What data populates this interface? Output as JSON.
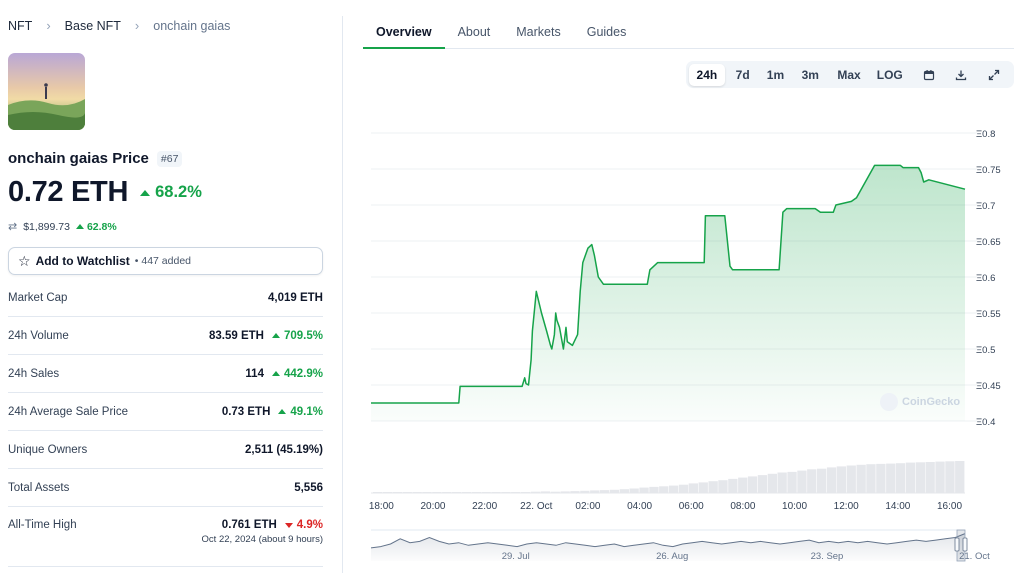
{
  "breadcrumb": [
    {
      "label": "NFT"
    },
    {
      "label": "Base NFT"
    },
    {
      "label": "onchain gaias"
    }
  ],
  "collection": {
    "name": "onchain gaias Price",
    "rank": "#67",
    "price": "0.72 ETH",
    "price_change": "68.2%",
    "usd_price": "$1,899.73",
    "usd_change": "62.8%"
  },
  "watchlist": {
    "label": "Add to Watchlist",
    "count": "• 447 added"
  },
  "stats": [
    {
      "label": "Market Cap",
      "value": "4,019 ETH",
      "change": "",
      "direction": ""
    },
    {
      "label": "24h Volume",
      "value": "83.59 ETH",
      "change": "709.5%",
      "direction": "up"
    },
    {
      "label": "24h Sales",
      "value": "114",
      "change": "442.9%",
      "direction": "up"
    },
    {
      "label": "24h Average Sale Price",
      "value": "0.73 ETH",
      "change": "49.1%",
      "direction": "up"
    },
    {
      "label": "Unique Owners",
      "value": "2,511 (45.19%)",
      "change": "",
      "direction": ""
    },
    {
      "label": "Total Assets",
      "value": "5,556",
      "change": "",
      "direction": ""
    }
  ],
  "ath": {
    "label": "All-Time High",
    "value": "0.761 ETH",
    "change": "4.9%",
    "date": "Oct 22, 2024 (about 9 hours)"
  },
  "tabs": [
    "Overview",
    "About",
    "Markets",
    "Guides"
  ],
  "ranges": [
    "24h",
    "7d",
    "1m",
    "3m",
    "Max",
    "LOG"
  ],
  "range_icons": [
    "calendar-icon",
    "download-icon",
    "expand-icon"
  ],
  "watermark": "CoinGecko",
  "colors": {
    "accent": "#16a34a",
    "negative": "#dc2626",
    "nav_line": "#64748b"
  },
  "chart_data": {
    "type": "area",
    "y_labels": [
      "Ξ0.8",
      "Ξ0.75",
      "Ξ0.7",
      "Ξ0.65",
      "Ξ0.6",
      "Ξ0.55",
      "Ξ0.5",
      "Ξ0.45",
      "Ξ0.4"
    ],
    "ylim": [
      0.4,
      0.8
    ],
    "x_labels": [
      "18:00",
      "20:00",
      "22:00",
      "22. Oct",
      "02:00",
      "04:00",
      "06:00",
      "08:00",
      "10:00",
      "12:00",
      "14:00",
      "16:00"
    ],
    "xlim": [
      17.6,
      40.6
    ],
    "series": [
      {
        "x": [
          17.6,
          21.0,
          21.05,
          23.45,
          23.55,
          23.6,
          23.7,
          23.8,
          23.85,
          24.0,
          24.2,
          24.4,
          24.55,
          24.6,
          24.7,
          24.75,
          24.8,
          24.9,
          25.0,
          25.05,
          25.15,
          25.2,
          25.4,
          25.6,
          25.7,
          25.8,
          26.0,
          26.15,
          26.25,
          26.4,
          26.6,
          28.3,
          28.4,
          28.55,
          28.7,
          29.0,
          29.05,
          29.6,
          29.65,
          30.5,
          30.55,
          31.3,
          31.5,
          31.6,
          31.8,
          32.1,
          32.6,
          33.2,
          33.4,
          33.55,
          33.7,
          34.0,
          34.8,
          35.0,
          35.5,
          35.6,
          36.2,
          36.4,
          37.1,
          37.2,
          37.6,
          37.8,
          38.0,
          38.1,
          38.2,
          38.3,
          38.4,
          38.6,
          38.8,
          38.9,
          39.0,
          39.2,
          40.6
        ],
        "y": [
          0.425,
          0.425,
          0.448,
          0.448,
          0.46,
          0.452,
          0.45,
          0.485,
          0.525,
          0.58,
          0.55,
          0.525,
          0.505,
          0.5,
          0.52,
          0.55,
          0.54,
          0.53,
          0.51,
          0.5,
          0.53,
          0.51,
          0.505,
          0.52,
          0.58,
          0.62,
          0.64,
          0.645,
          0.63,
          0.6,
          0.59,
          0.59,
          0.61,
          0.615,
          0.62,
          0.62,
          0.62,
          0.62,
          0.62,
          0.62,
          0.685,
          0.685,
          0.615,
          0.61,
          0.61,
          0.61,
          0.61,
          0.61,
          0.61,
          0.69,
          0.695,
          0.695,
          0.695,
          0.69,
          0.69,
          0.7,
          0.705,
          0.71,
          0.755,
          0.755,
          0.755,
          0.755,
          0.755,
          0.755,
          0.752,
          0.752,
          0.752,
          0.752,
          0.752,
          0.745,
          0.732,
          0.735,
          0.722
        ]
      }
    ],
    "volume": [
      0.01,
      0.01,
      0.02,
      0.01,
      0.02,
      0.01,
      0.02,
      0.02,
      0.01,
      0.02,
      0.02,
      0.02,
      0.02,
      0.03,
      0.02,
      0.03,
      0.04,
      0.05,
      0.04,
      0.05,
      0.06,
      0.07,
      0.08,
      0.09,
      0.1,
      0.12,
      0.14,
      0.17,
      0.19,
      0.21,
      0.23,
      0.26,
      0.3,
      0.33,
      0.37,
      0.4,
      0.44,
      0.48,
      0.52,
      0.56,
      0.6,
      0.64,
      0.66,
      0.7,
      0.74,
      0.76,
      0.8,
      0.83,
      0.86,
      0.88,
      0.9,
      0.91,
      0.92,
      0.93,
      0.95,
      0.96,
      0.97,
      0.98,
      0.99,
      1.0
    ],
    "navigator": {
      "labels": [
        "29. Jul",
        "26. Aug",
        "23. Sep",
        "21. Oct"
      ],
      "values": [
        0.35,
        0.4,
        0.5,
        0.7,
        0.55,
        0.6,
        0.75,
        0.6,
        0.5,
        0.55,
        0.45,
        0.5,
        0.55,
        0.5,
        0.45,
        0.4,
        0.5,
        0.55,
        0.5,
        0.45,
        0.55,
        0.5,
        0.45,
        0.4,
        0.45,
        0.5,
        0.4,
        0.45,
        0.5,
        0.55,
        0.45,
        0.4,
        0.5,
        0.55,
        0.6,
        0.55,
        0.5,
        0.55,
        0.6,
        0.55,
        0.6,
        0.55,
        0.5,
        0.55,
        0.6,
        0.65,
        0.55,
        0.6,
        0.55,
        0.6,
        0.55,
        0.6,
        0.55,
        0.5,
        0.55,
        0.6,
        0.65,
        0.6,
        0.65,
        0.7,
        0.75,
        0.9
      ]
    }
  }
}
